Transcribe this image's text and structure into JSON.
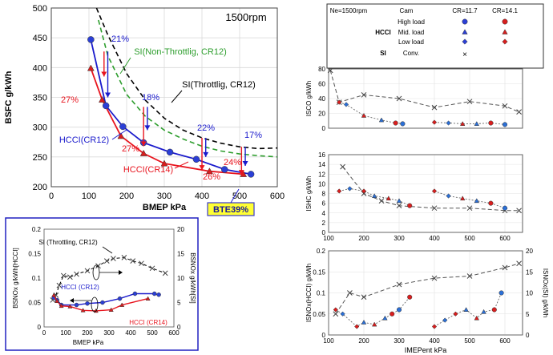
{
  "chart_data": [
    {
      "id": "bsfc",
      "type": "line",
      "title": "1500rpm",
      "xlabel": "BMEP  kPa",
      "ylabel": "BSFC  g/kWh",
      "xlim": [
        0,
        600
      ],
      "ylim": [
        200,
        500
      ],
      "xticks": [
        0,
        100,
        200,
        300,
        400,
        500,
        600
      ],
      "yticks": [
        200,
        250,
        300,
        350,
        400,
        450,
        500
      ],
      "grid": true,
      "series": [
        {
          "name": "SI(Non-Throttlig, CR12)",
          "color": "#2e9e2e",
          "dash": "6,4",
          "points": [
            [
              125,
              480
            ],
            [
              150,
              420
            ],
            [
              200,
              355
            ],
            [
              250,
              318
            ],
            [
              300,
              295
            ],
            [
              350,
              280
            ],
            [
              400,
              268
            ],
            [
              450,
              260
            ],
            [
              500,
              255
            ],
            [
              550,
              252
            ],
            [
              600,
              250
            ]
          ]
        },
        {
          "name": "SI(Throttlig, CR12)",
          "color": "#000000",
          "dash": "6,4",
          "points": [
            [
              120,
              500
            ],
            [
              150,
              455
            ],
            [
              200,
              390
            ],
            [
              250,
              345
            ],
            [
              300,
              315
            ],
            [
              350,
              295
            ],
            [
              400,
              282
            ],
            [
              450,
              273
            ],
            [
              500,
              267
            ],
            [
              550,
              264
            ],
            [
              600,
              265
            ]
          ]
        },
        {
          "name": "HCCI(CR12)",
          "color": "#1a1acc",
          "dash": "",
          "points": [
            [
              105,
              447
            ],
            [
              145,
              336
            ],
            [
              190,
              301
            ],
            [
              245,
              274
            ],
            [
              315,
              258
            ],
            [
              385,
              246
            ],
            [
              460,
              229
            ],
            [
              530,
              221
            ]
          ]
        },
        {
          "name": "HCCI(CR14)",
          "color": "#e8141e",
          "dash": "",
          "points": [
            [
              105,
              399
            ],
            [
              135,
              346
            ],
            [
              185,
              285
            ],
            [
              245,
              256
            ],
            [
              300,
              239
            ],
            [
              420,
              226
            ],
            [
              510,
              221
            ]
          ]
        }
      ],
      "annotations": [
        "21%",
        "18%",
        "22%",
        "17%",
        "27%",
        "27%",
        "26%",
        "24%",
        "BTE39%"
      ],
      "improvement_arrows": [
        [
          140,
          427,
          385,
          "#e8141e"
        ],
        [
          150,
          427,
          350,
          "#1a1acc"
        ],
        [
          245,
          334,
          268,
          "#e8141e"
        ],
        [
          255,
          334,
          295,
          "#1a1acc"
        ],
        [
          400,
          282,
          228,
          "#e8141e"
        ],
        [
          410,
          282,
          250,
          "#1a1acc"
        ],
        [
          505,
          267,
          220,
          "#e8141e"
        ],
        [
          515,
          267,
          235,
          "#1a1acc"
        ]
      ]
    },
    {
      "id": "nox",
      "type": "line",
      "xlabel": "BMEP  kPa",
      "ylabel": "BSNOx  g/kWh[HCCI]",
      "ylabel_right": "BSNOx  g/kWh[SI]",
      "xlim": [
        0,
        600
      ],
      "ylim": [
        0,
        0.2
      ],
      "ylim_right": [
        0,
        20
      ],
      "xticks": [
        0,
        100,
        200,
        300,
        400,
        500,
        600
      ],
      "yticks": [
        0,
        0.05,
        0.1,
        0.15,
        0.2
      ],
      "yticks_right": [
        0,
        5,
        10,
        15,
        20
      ],
      "series": [
        {
          "name": "SI (Throttling, CR12)",
          "axis": "right",
          "color": "#000000",
          "dash": "4,3",
          "points": [
            [
              40,
              5.5
            ],
            [
              55,
              6.5
            ],
            [
              70,
              8.5
            ],
            [
              90,
              10.5
            ],
            [
              120,
              10.2
            ],
            [
              150,
              10.8
            ],
            [
              200,
              11.5
            ],
            [
              250,
              12.5
            ],
            [
              290,
              13.5
            ],
            [
              320,
              14
            ],
            [
              370,
              14.2
            ],
            [
              410,
              13.5
            ],
            [
              450,
              13
            ],
            [
              500,
              12
            ],
            [
              560,
              11
            ]
          ]
        },
        {
          "name": "HCCI (CR12)",
          "axis": "left",
          "color": "#1a1acc",
          "dash": "",
          "points": [
            [
              45,
              0.06
            ],
            [
              60,
              0.055
            ],
            [
              80,
              0.045
            ],
            [
              150,
              0.045
            ],
            [
              200,
              0.048
            ],
            [
              270,
              0.05
            ],
            [
              350,
              0.058
            ],
            [
              420,
              0.068
            ],
            [
              510,
              0.068
            ],
            [
              530,
              0.066
            ]
          ]
        },
        {
          "name": "HCCI (CR14)",
          "axis": "left",
          "color": "#e8141e",
          "dash": "",
          "points": [
            [
              45,
              0.065
            ],
            [
              60,
              0.053
            ],
            [
              80,
              0.043
            ],
            [
              120,
              0.042
            ],
            [
              180,
              0.034
            ],
            [
              240,
              0.033
            ],
            [
              310,
              0.035
            ],
            [
              360,
              0.045
            ],
            [
              480,
              0.058
            ]
          ]
        }
      ]
    },
    {
      "id": "legend",
      "type": "table",
      "rows": [
        {
          "c1": "Ne=1500rpm",
          "c2": "Cam",
          "c3": "CR=11.7",
          "c4": "CR=14.1"
        },
        {
          "c1": "",
          "c2": "High load",
          "c3": "circle",
          "c4": "circle"
        },
        {
          "c1": "HCCI",
          "c2": "Mid. load",
          "c3": "triangle",
          "c4": "triangle"
        },
        {
          "c1": "",
          "c2": "Low load",
          "c3": "diamond",
          "c4": "diamond"
        },
        {
          "c1": "SI",
          "c2": "Conv.",
          "c3": "×",
          "c4": ""
        }
      ]
    },
    {
      "id": "isco",
      "type": "scatter",
      "ylabel": "ISCO  g/kWh",
      "xlim": [
        100,
        650
      ],
      "ylim": [
        0,
        80
      ],
      "yticks": [
        0,
        20,
        40,
        60,
        80
      ],
      "si": [
        [
          105,
          78
        ],
        [
          130,
          35
        ],
        [
          200,
          45
        ],
        [
          300,
          40
        ],
        [
          400,
          28
        ],
        [
          500,
          36
        ],
        [
          600,
          30
        ],
        [
          640,
          22
        ]
      ],
      "hcci_groups": [
        [
          [
            130,
            35
          ],
          [
            150,
            32
          ],
          [
            200,
            17
          ],
          [
            250,
            11
          ],
          [
            290,
            7
          ],
          [
            310,
            6
          ]
        ],
        [
          [
            400,
            8
          ],
          [
            440,
            7
          ],
          [
            480,
            6
          ],
          [
            520,
            6
          ],
          [
            560,
            7
          ],
          [
            600,
            5
          ]
        ]
      ]
    },
    {
      "id": "ishc",
      "type": "scatter",
      "ylabel": "ISHC  g/kWh",
      "xlim": [
        100,
        650
      ],
      "ylim": [
        0,
        16
      ],
      "yticks": [
        0,
        2,
        4,
        6,
        8,
        10,
        12,
        14,
        16
      ],
      "si": [
        [
          140,
          13.5
        ],
        [
          200,
          8
        ],
        [
          250,
          6.5
        ],
        [
          300,
          5.5
        ],
        [
          400,
          5
        ],
        [
          500,
          5
        ],
        [
          600,
          4.5
        ],
        [
          640,
          4.5
        ]
      ],
      "hcci_groups": [
        [
          [
            130,
            8.5
          ],
          [
            160,
            9
          ],
          [
            200,
            8.5
          ],
          [
            230,
            7.5
          ],
          [
            270,
            7
          ],
          [
            300,
            6.5
          ],
          [
            330,
            5.5
          ]
        ],
        [
          [
            400,
            8.5
          ],
          [
            440,
            7.5
          ],
          [
            480,
            7
          ],
          [
            520,
            6.5
          ],
          [
            560,
            6
          ],
          [
            600,
            5
          ]
        ]
      ]
    },
    {
      "id": "isnox",
      "type": "scatter",
      "xlabel": "IMEPent kPa",
      "ylabel": "ISNOx(HCCI)  g/kWh",
      "ylabel_right": "ISNOx(SI)  g/kWh",
      "xlim": [
        100,
        650
      ],
      "ylim": [
        0,
        0.2
      ],
      "ylim_right": [
        0,
        20
      ],
      "yticks": [
        0,
        0.05,
        0.1,
        0.15,
        0.2
      ],
      "yticks_right": [
        0,
        5,
        10,
        15,
        20
      ],
      "si": [
        [
          120,
          5
        ],
        [
          160,
          10
        ],
        [
          200,
          9
        ],
        [
          300,
          12
        ],
        [
          400,
          13.5
        ],
        [
          500,
          14
        ],
        [
          600,
          16
        ],
        [
          640,
          17
        ]
      ],
      "hcci_groups": [
        [
          [
            120,
            0.06
          ],
          [
            140,
            0.05
          ],
          [
            180,
            0.02
          ],
          [
            200,
            0.03
          ],
          [
            230,
            0.025
          ],
          [
            260,
            0.04
          ],
          [
            280,
            0.05
          ],
          [
            300,
            0.06
          ],
          [
            330,
            0.09
          ]
        ],
        [
          [
            400,
            0.02
          ],
          [
            430,
            0.035
          ],
          [
            460,
            0.05
          ],
          [
            490,
            0.06
          ],
          [
            520,
            0.04
          ],
          [
            540,
            0.055
          ],
          [
            570,
            0.06
          ],
          [
            590,
            0.1
          ]
        ]
      ]
    }
  ]
}
